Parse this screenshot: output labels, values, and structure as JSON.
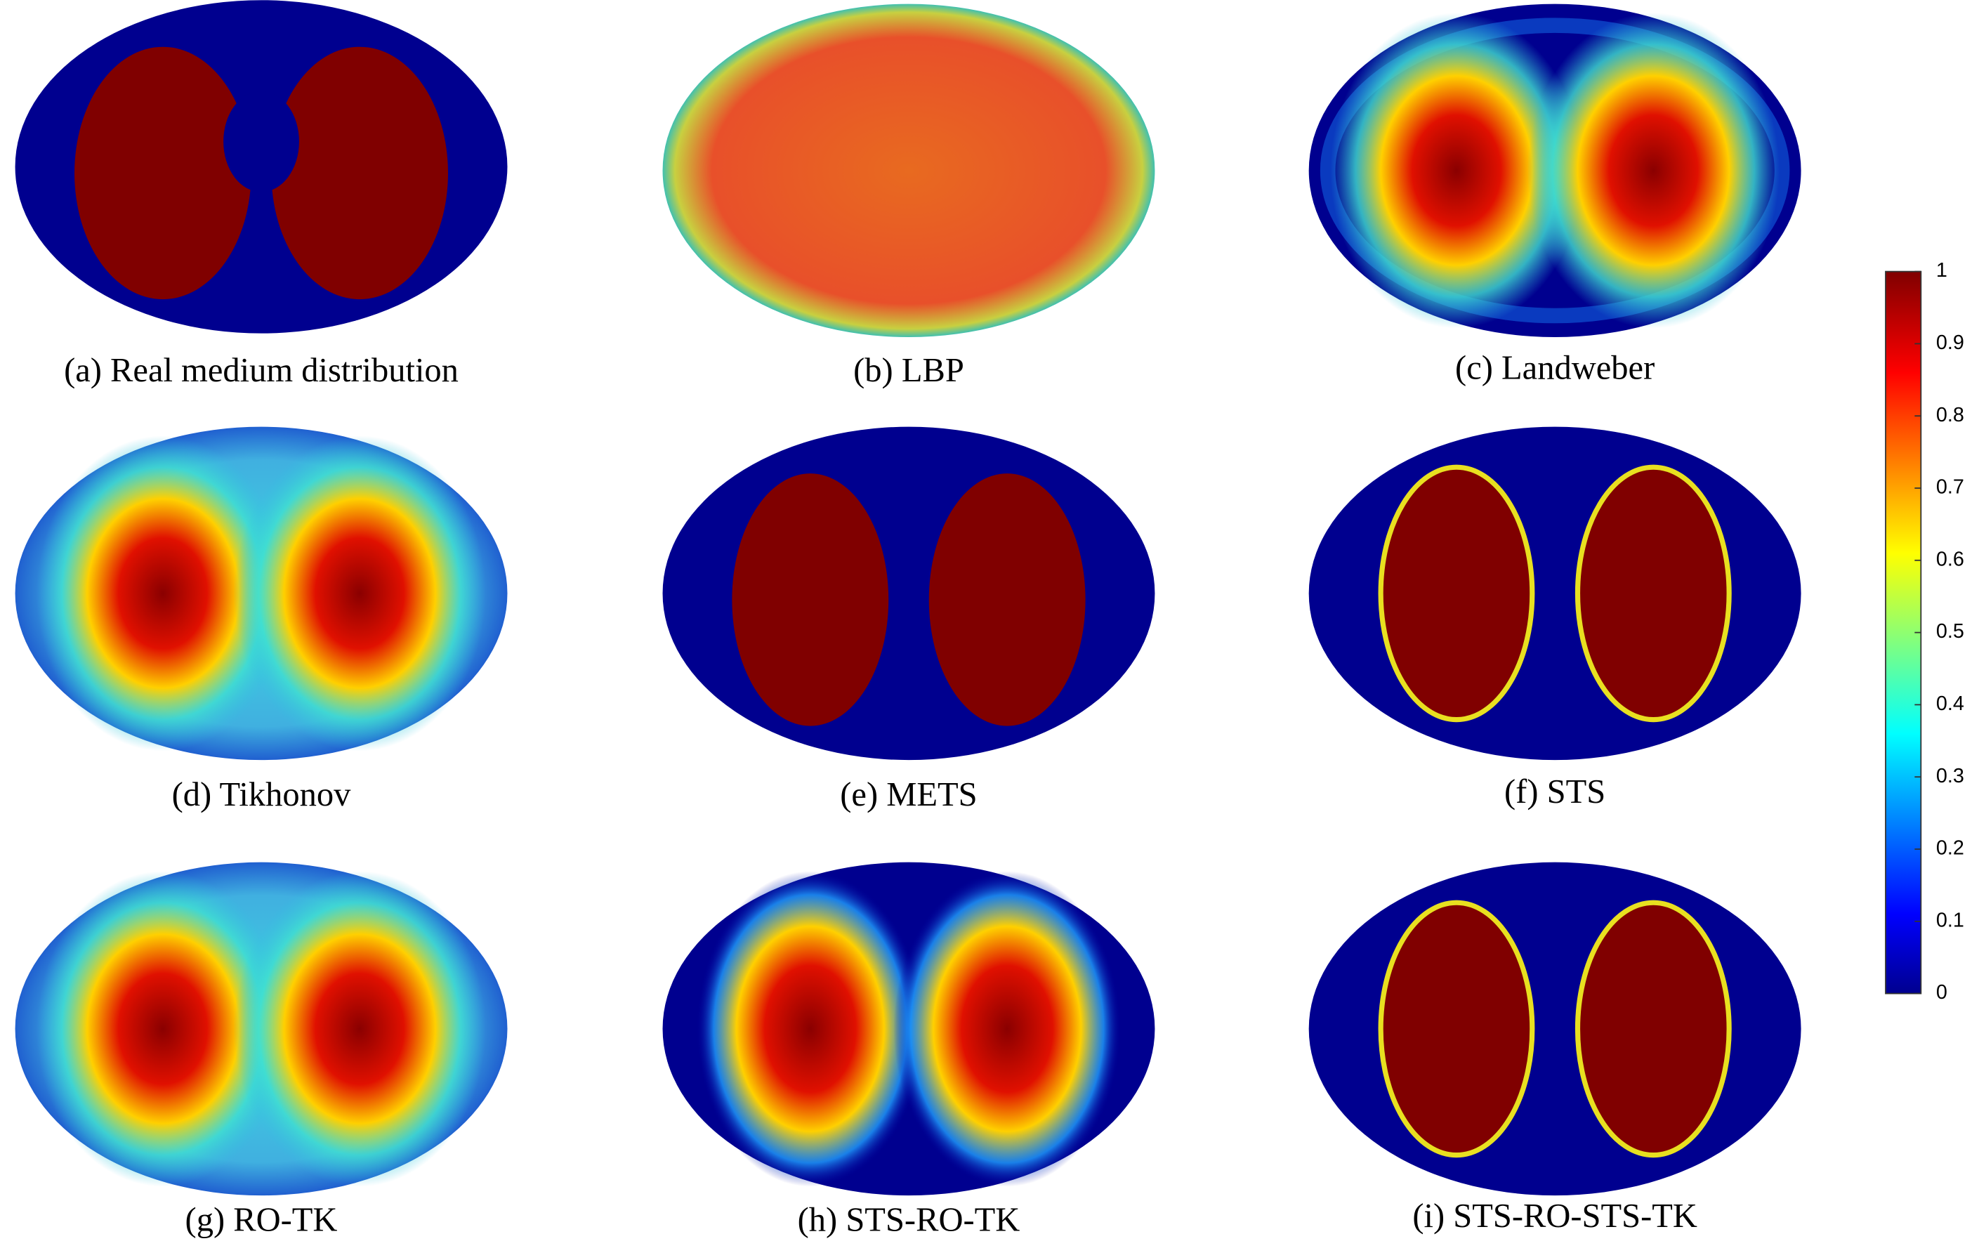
{
  "chart_data": {
    "type": "heatmap",
    "captions": [
      "(a) Real medium distribution",
      "(b) LBP",
      "(c) Landweber",
      "(d) Tikhonov",
      "(e) METS",
      "(f) STS",
      "(g) RO-TK",
      "(h) STS-RO-TK",
      "(i) STS-RO-STS-TK"
    ],
    "colorbar": {
      "lim": [
        0,
        1
      ],
      "ticks": [
        0,
        0.1,
        0.2,
        0.3,
        0.4,
        0.5,
        0.6,
        0.7,
        0.8,
        0.9,
        1
      ]
    }
  }
}
